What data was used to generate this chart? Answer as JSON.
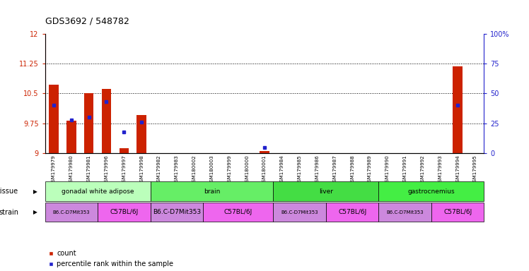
{
  "title": "GDS3692 / 548782",
  "samples": [
    "GSM179979",
    "GSM179980",
    "GSM179981",
    "GSM179996",
    "GSM179997",
    "GSM179998",
    "GSM179982",
    "GSM179983",
    "GSM180002",
    "GSM180003",
    "GSM179999",
    "GSM180000",
    "GSM180001",
    "GSM179984",
    "GSM179985",
    "GSM179986",
    "GSM179987",
    "GSM179988",
    "GSM179989",
    "GSM179990",
    "GSM179991",
    "GSM179992",
    "GSM179993",
    "GSM179994",
    "GSM179995"
  ],
  "count_values": [
    10.72,
    9.82,
    10.5,
    10.62,
    9.12,
    9.95,
    0,
    0,
    0,
    0,
    0,
    0,
    9.05,
    0,
    0,
    0,
    0,
    0,
    0,
    0,
    0,
    0,
    0,
    11.18,
    0
  ],
  "percentile_values": [
    40,
    28,
    30,
    43,
    18,
    26,
    0,
    0,
    0,
    0,
    0,
    0,
    5,
    0,
    0,
    0,
    0,
    0,
    0,
    0,
    0,
    0,
    0,
    40,
    0
  ],
  "ylim_left": [
    9,
    12
  ],
  "ylim_right": [
    0,
    100
  ],
  "yticks_left": [
    9,
    9.75,
    10.5,
    11.25,
    12
  ],
  "yticks_right": [
    0,
    25,
    50,
    75,
    100
  ],
  "ytick_labels_left": [
    "9",
    "9.75",
    "10.5",
    "11.25",
    "12"
  ],
  "ytick_labels_right": [
    "0",
    "25",
    "50",
    "75",
    "100%"
  ],
  "bar_color": "#cc2200",
  "dot_color": "#2222cc",
  "tissue_groups": [
    {
      "label": "gonadal white adipose",
      "start": 0,
      "end": 6,
      "color": "#bbffbb"
    },
    {
      "label": "brain",
      "start": 6,
      "end": 13,
      "color": "#66ee66"
    },
    {
      "label": "liver",
      "start": 13,
      "end": 19,
      "color": "#44dd44"
    },
    {
      "label": "gastrocnemius",
      "start": 19,
      "end": 25,
      "color": "#44ee44"
    }
  ],
  "strain_groups": [
    {
      "label": "B6.C-D7Mit353",
      "start": 0,
      "end": 3,
      "color": "#cc88dd",
      "small": true
    },
    {
      "label": "C57BL/6J",
      "start": 3,
      "end": 6,
      "color": "#ee66ee",
      "small": false
    },
    {
      "label": "B6.C-D7Mit353",
      "start": 6,
      "end": 9,
      "color": "#cc88dd",
      "small": false
    },
    {
      "label": "C57BL/6J",
      "start": 9,
      "end": 13,
      "color": "#ee66ee",
      "small": false
    },
    {
      "label": "B6.C-D7Mit353",
      "start": 13,
      "end": 16,
      "color": "#cc88dd",
      "small": true
    },
    {
      "label": "C57BL/6J",
      "start": 16,
      "end": 19,
      "color": "#ee66ee",
      "small": false
    },
    {
      "label": "B6.C-D7Mit353",
      "start": 19,
      "end": 22,
      "color": "#cc88dd",
      "small": true
    },
    {
      "label": "C57BL/6J",
      "start": 22,
      "end": 25,
      "color": "#ee66ee",
      "small": false
    }
  ],
  "tissue_label": "tissue",
  "strain_label": "strain",
  "legend_count": "count",
  "legend_percentile": "percentile rank within the sample",
  "background_color": "#ffffff",
  "plot_bg_color": "#ffffff",
  "xtick_bg_color": "#dddddd"
}
